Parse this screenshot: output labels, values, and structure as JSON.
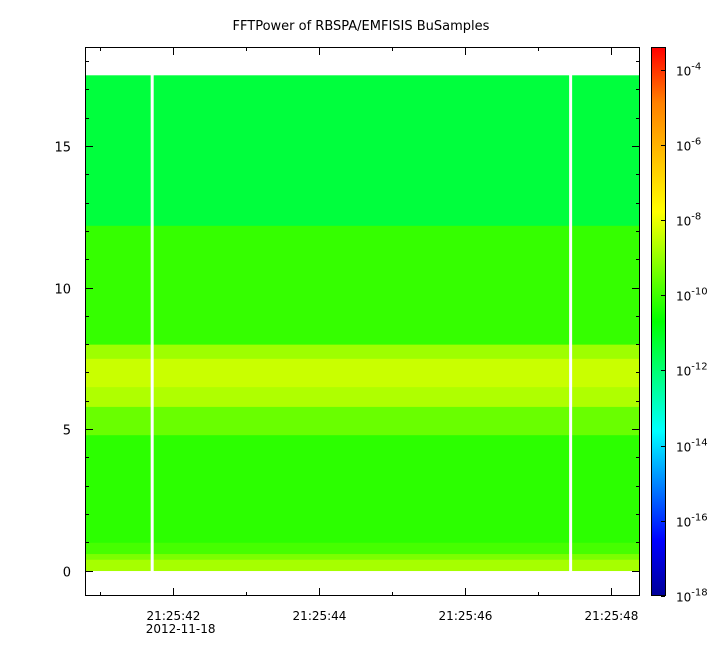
{
  "chart_data": {
    "type": "heatmap",
    "title": "FFTPower of RBSPA/EMFISIS  BuSamples",
    "xlabel": "",
    "ylabel": "",
    "x_tick_labels": [
      "21:25:42",
      "21:25:44",
      "21:25:46",
      "21:25:48"
    ],
    "x_date_label": "2012-11-18",
    "x_range_seconds": [
      40.8,
      48.4
    ],
    "x_tick_seconds": [
      42,
      44,
      46,
      48
    ],
    "x_minor_tick_seconds": [
      41,
      43,
      45,
      47
    ],
    "data_x_range_seconds": [
      40.8,
      48.4
    ],
    "y_range": [
      -0.9,
      18.5
    ],
    "y_ticks": [
      0,
      5,
      10,
      15
    ],
    "y_data_range": [
      0,
      17.5
    ],
    "gaps_seconds": [
      41.72,
      47.45
    ],
    "colorbar": {
      "scale": "log",
      "range_exp": [
        -18,
        -3.4
      ],
      "tick_exps": [
        -18,
        -16,
        -14,
        -12,
        -10,
        -8,
        -6,
        -4
      ],
      "tick_base": "10"
    },
    "bands": [
      {
        "y": [
          0.0,
          0.4
        ],
        "exp": -8.8
      },
      {
        "y": [
          0.4,
          0.6
        ],
        "exp": -9.3
      },
      {
        "y": [
          0.6,
          1.0
        ],
        "exp": -9.9
      },
      {
        "y": [
          1.0,
          4.8
        ],
        "exp": -10.2
      },
      {
        "y": [
          4.8,
          5.8
        ],
        "exp": -9.5
      },
      {
        "y": [
          5.8,
          6.5
        ],
        "exp": -8.7
      },
      {
        "y": [
          6.5,
          7.5
        ],
        "exp": -8.4
      },
      {
        "y": [
          7.5,
          8.0
        ],
        "exp": -8.9
      },
      {
        "y": [
          8.0,
          12.2
        ],
        "exp": -10.1
      },
      {
        "y": [
          12.2,
          17.5
        ],
        "exp": -11.4
      }
    ],
    "colors": {
      "axis": "#000000",
      "gap": "#ffffff",
      "colormap": [
        "#000099",
        "#0000ff",
        "#0080ff",
        "#00ffff",
        "#00ff80",
        "#00ff00",
        "#80ff00",
        "#ffff00",
        "#ffc000",
        "#ff8000",
        "#ff0000"
      ]
    }
  }
}
